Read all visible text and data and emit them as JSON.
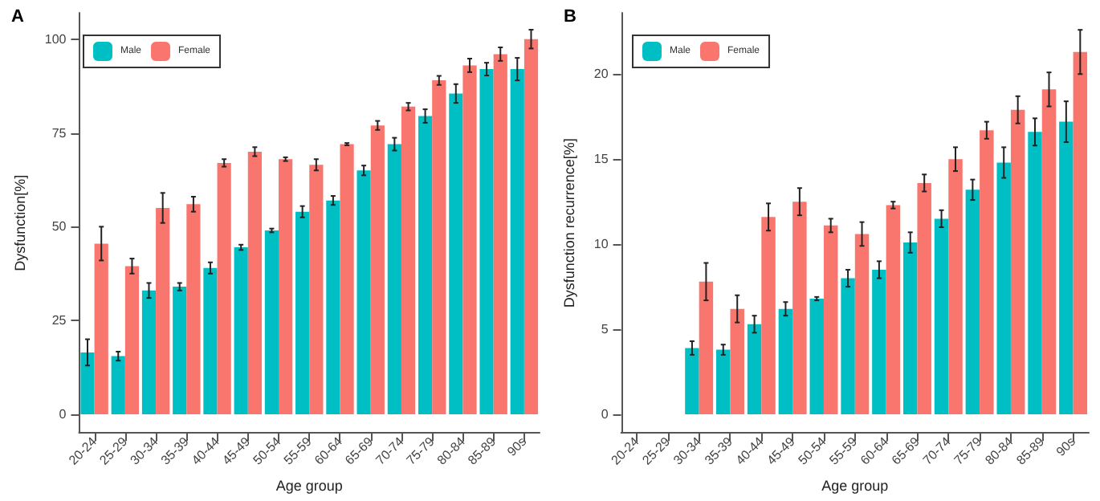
{
  "chart_data": [
    {
      "type": "bar",
      "title": "A",
      "xlabel": "Age group",
      "ylabel": "Dysfunction[%]",
      "categories": [
        "20-24",
        "25-29",
        "30-34",
        "35-39",
        "40-44",
        "45-49",
        "50-54",
        "55-59",
        "60-64",
        "65-69",
        "70-74",
        "75-79",
        "80-84",
        "85-89",
        "90s"
      ],
      "series": [
        {
          "name": "Male",
          "color": "#00bfc4",
          "values": [
            16.5,
            15.5,
            33,
            34,
            39,
            44.5,
            49,
            54,
            57,
            65,
            72,
            79.5,
            85.5,
            92,
            92
          ],
          "errors": [
            3.5,
            1.2,
            2,
            1,
            1.5,
            0.7,
            0.5,
            1.5,
            1.2,
            1.3,
            1.7,
            1.8,
            2.5,
            1.7,
            3
          ]
        },
        {
          "name": "Female",
          "color": "#f8766d",
          "values": [
            45.5,
            39.5,
            55,
            56,
            67,
            70,
            68,
            66.5,
            72,
            77,
            82,
            89,
            93,
            96,
            100
          ],
          "errors": [
            4.5,
            2,
            4,
            2,
            1,
            1.2,
            0.5,
            1.5,
            0.3,
            1.2,
            1,
            1.2,
            1.8,
            1.8,
            2.5
          ]
        }
      ],
      "ylim": [
        -5,
        107
      ],
      "yticks": [
        0,
        25,
        50,
        75,
        100
      ],
      "grid": false,
      "legend": "top left"
    },
    {
      "type": "bar",
      "title": "B",
      "xlabel": "Age group",
      "ylabel": "Dysfunction recurrence[%]",
      "categories": [
        "20-24",
        "25-29",
        "30-34",
        "35-39",
        "40-44",
        "45-49",
        "50-54",
        "55-59",
        "60-64",
        "65-69",
        "70-74",
        "75-79",
        "80-84",
        "85-89",
        "90s"
      ],
      "series": [
        {
          "name": "Male",
          "color": "#00bfc4",
          "values": [
            0,
            0,
            3.9,
            3.8,
            5.3,
            6.2,
            6.8,
            8,
            8.5,
            10.1,
            11.5,
            13.2,
            14.8,
            16.6,
            17.2
          ],
          "errors": [
            null,
            null,
            0.4,
            0.3,
            0.5,
            0.4,
            0.1,
            0.5,
            0.5,
            0.6,
            0.5,
            0.6,
            0.9,
            0.8,
            1.2
          ]
        },
        {
          "name": "Female",
          "color": "#f8766d",
          "values": [
            0,
            0,
            7.8,
            6.2,
            11.6,
            12.5,
            11.1,
            10.6,
            12.3,
            13.6,
            15,
            16.7,
            17.9,
            19.1,
            21.3
          ],
          "errors": [
            null,
            null,
            1.1,
            0.8,
            0.8,
            0.8,
            0.4,
            0.7,
            0.2,
            0.5,
            0.7,
            0.5,
            0.8,
            1,
            1.3
          ]
        }
      ],
      "ylim": [
        -1.1,
        23.6
      ],
      "yticks": [
        0,
        5,
        10,
        15,
        20
      ],
      "grid": false,
      "legend": "top left"
    }
  ]
}
